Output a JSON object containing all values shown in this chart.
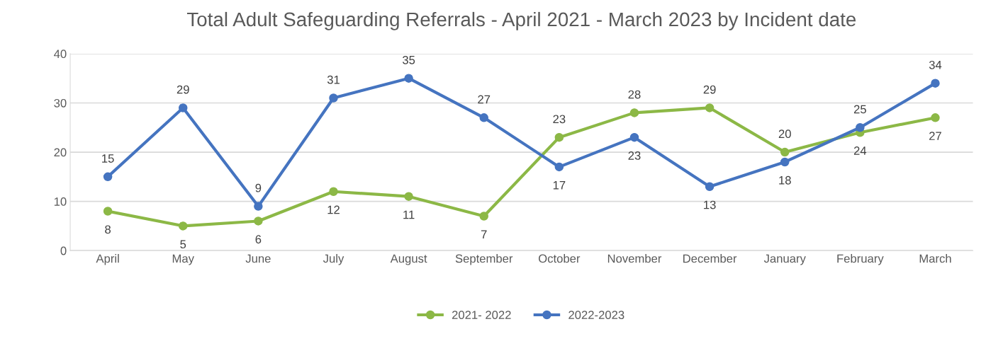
{
  "chart_data": {
    "type": "line",
    "title": "Total Adult Safeguarding Referrals - April 2021 - March 2023 by Incident date",
    "categories": [
      "April",
      "May",
      "June",
      "July",
      "August",
      "September",
      "October",
      "November",
      "December",
      "January",
      "February",
      "March"
    ],
    "series": [
      {
        "name": "2021- 2022",
        "color": "#8cb846",
        "values": [
          8,
          5,
          6,
          12,
          11,
          7,
          23,
          28,
          29,
          20,
          24,
          27
        ]
      },
      {
        "name": "2022-2023",
        "color": "#4574c0",
        "values": [
          15,
          29,
          9,
          31,
          35,
          27,
          17,
          23,
          13,
          18,
          25,
          34
        ]
      }
    ],
    "ylim": [
      0,
      40
    ],
    "yticks": [
      0,
      10,
      20,
      30,
      40
    ],
    "grid": "y",
    "legend": "bottom",
    "marker": "circle",
    "line_style": "solid",
    "data_labels": true
  }
}
